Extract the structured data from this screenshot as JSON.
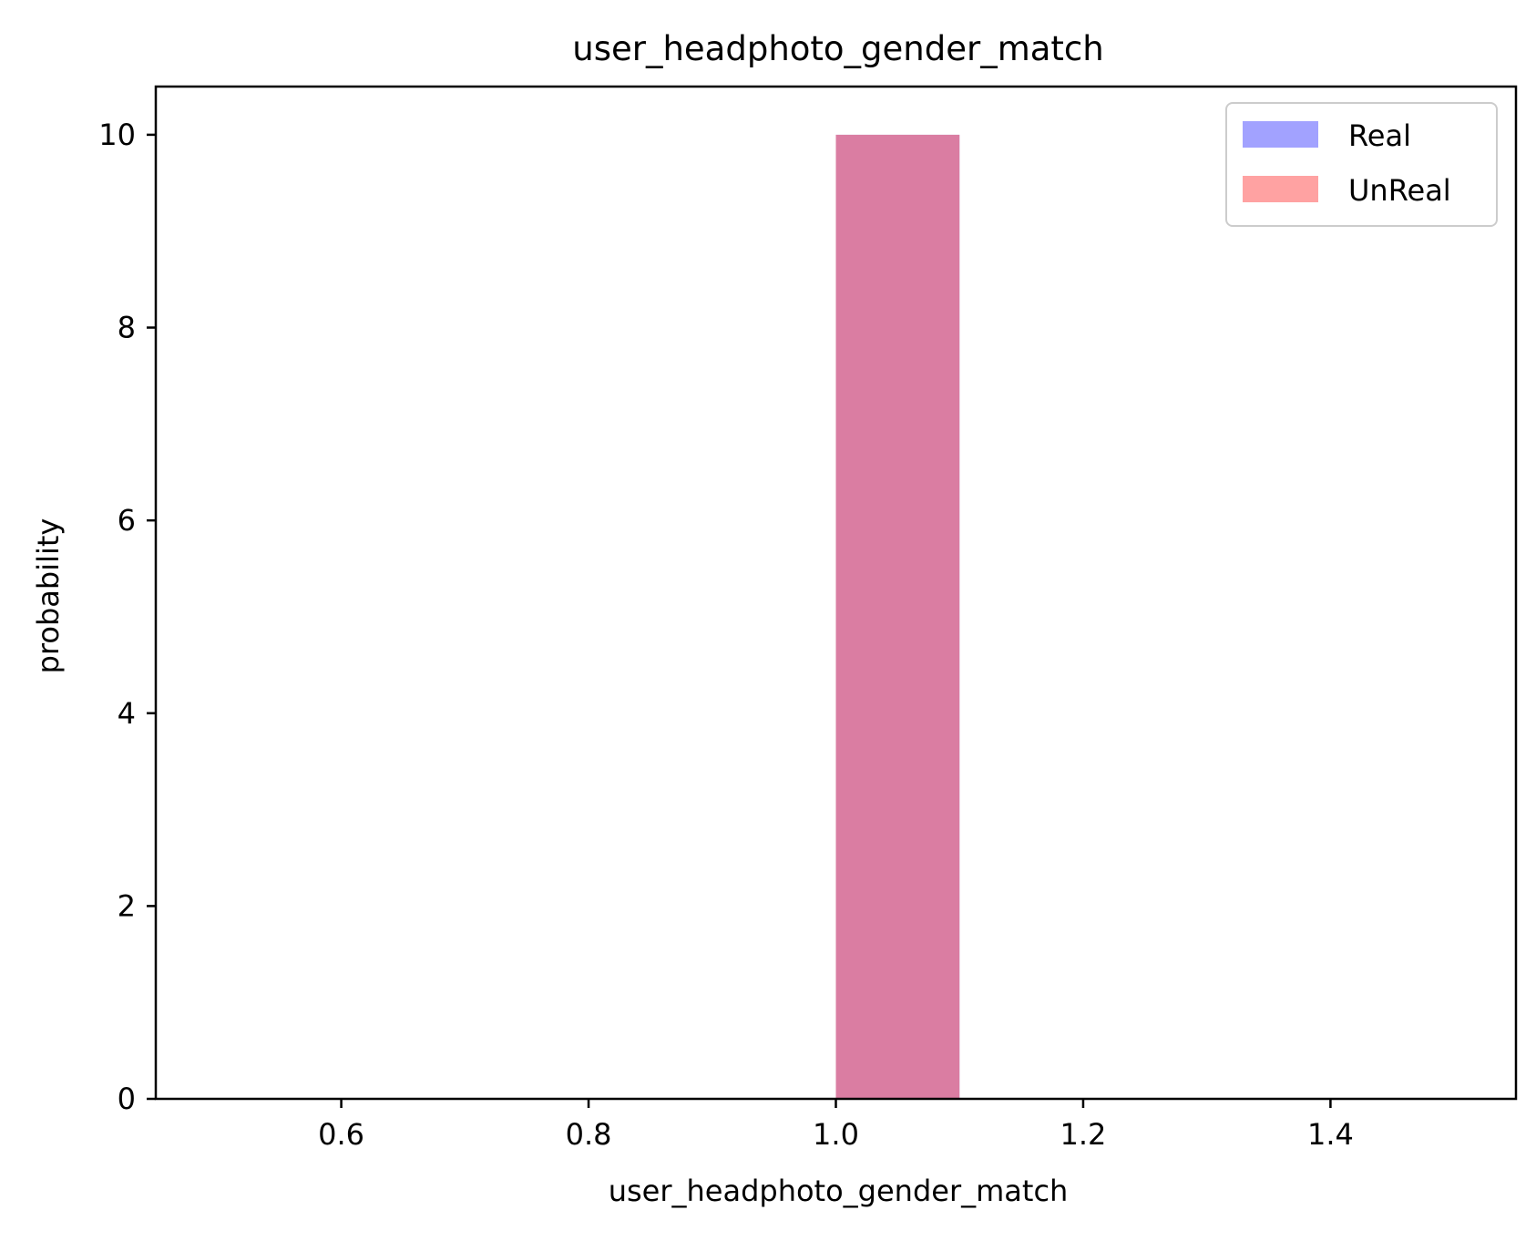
{
  "chart_data": {
    "type": "bar",
    "title": "user_headphoto_gender_match",
    "xlabel": "user_headphoto_gender_match",
    "ylabel": "probability",
    "xlim": [
      0.45,
      1.55
    ],
    "ylim": [
      0,
      10.5
    ],
    "xticks": [
      0.6,
      0.8,
      1.0,
      1.2,
      1.4
    ],
    "xtick_labels": [
      "0.6",
      "0.8",
      "1.0",
      "1.2",
      "1.4"
    ],
    "yticks": [
      0,
      2,
      4,
      6,
      8,
      10
    ],
    "ytick_labels": [
      "0",
      "2",
      "4",
      "6",
      "8",
      "10"
    ],
    "grid": false,
    "legend_position": "top-right",
    "series": [
      {
        "name": "Real",
        "color": "#6464ff",
        "opacity": 0.6,
        "bins": [
          {
            "x_start": 1.0,
            "x_end": 1.1,
            "value": 10
          }
        ]
      },
      {
        "name": "UnReal",
        "color": "#ff6464",
        "opacity": 0.6,
        "bins": [
          {
            "x_start": 1.0,
            "x_end": 1.1,
            "value": 10
          }
        ]
      }
    ],
    "overlap_color": "#c02963"
  }
}
